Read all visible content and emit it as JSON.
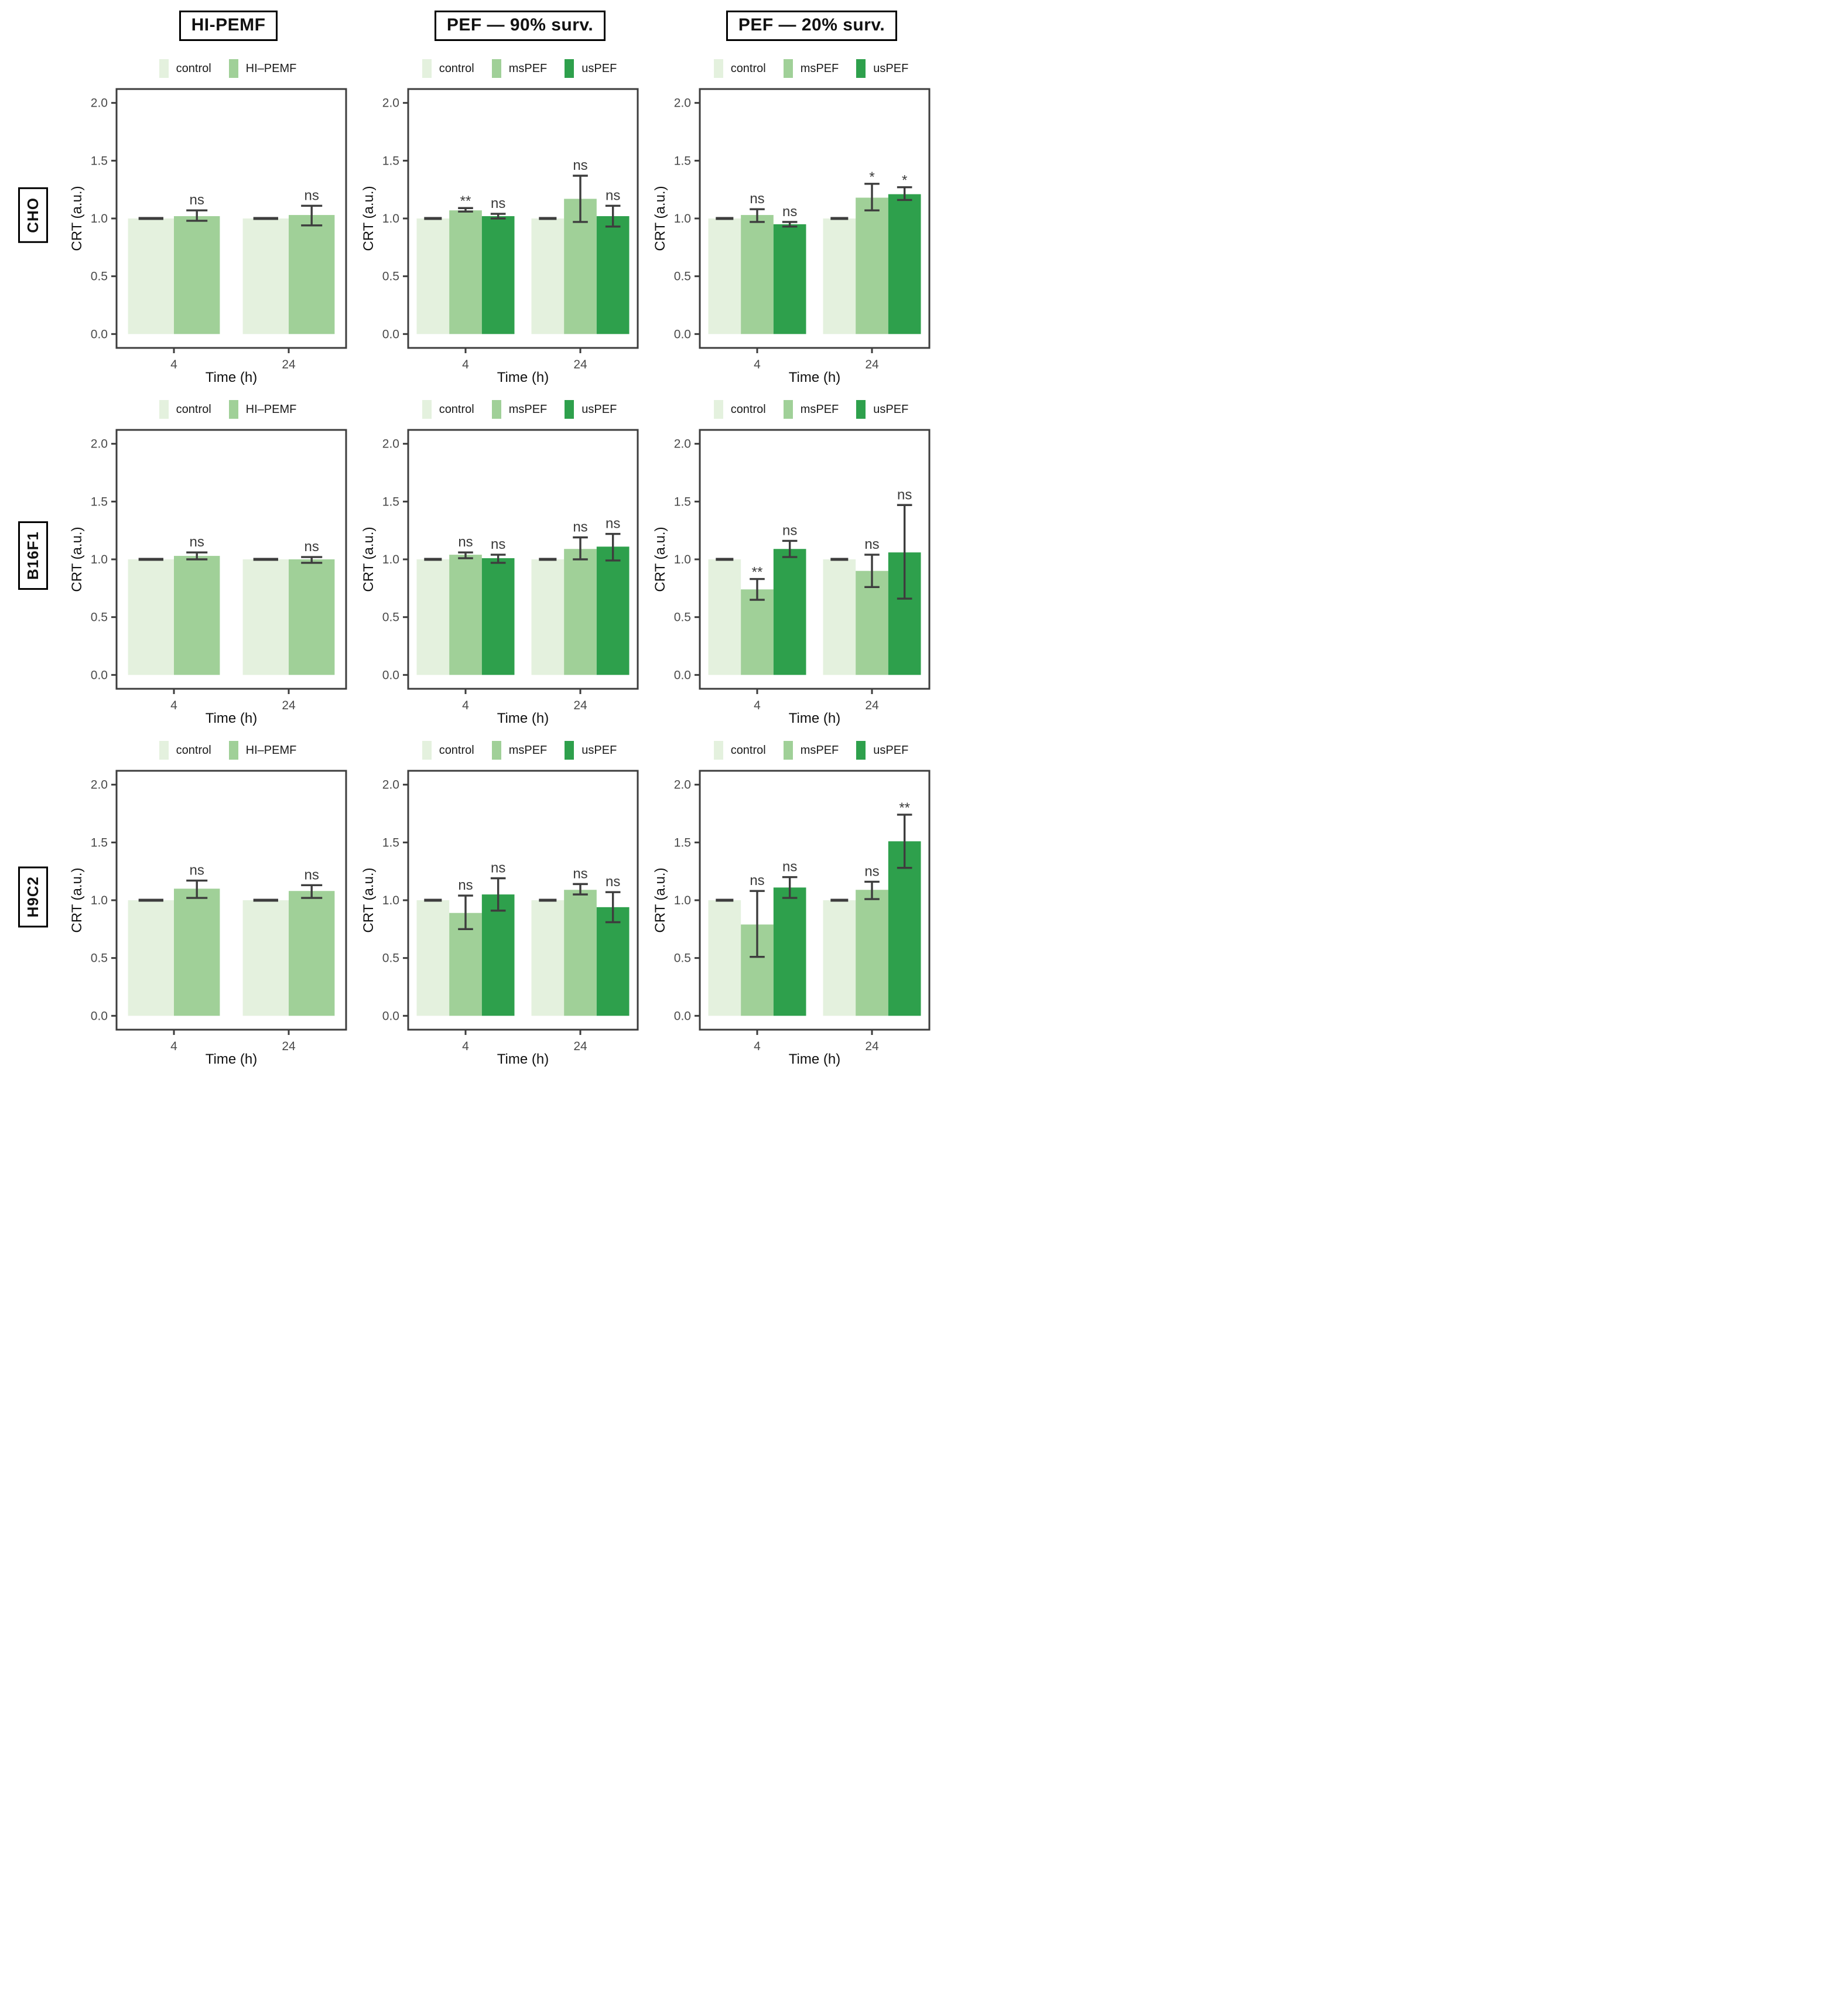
{
  "figure": {
    "column_titles": [
      "HI-PEMF",
      "PEF — 90% surv.",
      "PEF — 20% surv."
    ],
    "row_labels": [
      "CHO",
      "B16F1",
      "H9C2"
    ]
  },
  "axis": {
    "ylabel": "CRT (a.u.)",
    "xlabel": "Time (h)",
    "ytick_labels": [
      "0.0",
      "0.5",
      "1.0",
      "1.5",
      "2.0"
    ],
    "ytick_values": [
      0,
      0.5,
      1,
      1.5,
      2
    ],
    "ylim": [
      0,
      2
    ],
    "xtick_labels": [
      "4",
      "24"
    ]
  },
  "colors": {
    "control": "#e4f1de",
    "treatment_mid": "#a0d098",
    "treatment_dark": "#2ea04c",
    "errorbar": "#3d3d3d",
    "axis": "#3d3d3d",
    "tick_text": "#4a4a4a",
    "label_text": "#111111",
    "sig_text": "#3a3a3a"
  },
  "chart_data": [
    {
      "type": "bar",
      "row": "CHO",
      "treatment": "HI-PEMF",
      "legend": [
        {
          "label": "control",
          "key": "control"
        },
        {
          "label": "HI–PEMF",
          "key": "treatment_mid"
        }
      ],
      "groups": [
        {
          "x": "4",
          "bars": [
            {
              "series": "control",
              "key": "control",
              "v": 1.0,
              "lo": 1.0,
              "hi": 1.0,
              "sig": ""
            },
            {
              "series": "HI–PEMF",
              "key": "treatment_mid",
              "v": 1.02,
              "lo": 0.98,
              "hi": 1.07,
              "sig": "ns"
            }
          ]
        },
        {
          "x": "24",
          "bars": [
            {
              "series": "control",
              "key": "control",
              "v": 1.0,
              "lo": 1.0,
              "hi": 1.0,
              "sig": ""
            },
            {
              "series": "HI–PEMF",
              "key": "treatment_mid",
              "v": 1.03,
              "lo": 0.94,
              "hi": 1.11,
              "sig": "ns"
            }
          ]
        }
      ]
    },
    {
      "type": "bar",
      "row": "CHO",
      "treatment": "PEF — 90% surv.",
      "legend": [
        {
          "label": "control",
          "key": "control"
        },
        {
          "label": "msPEF",
          "key": "treatment_mid"
        },
        {
          "label": "usPEF",
          "key": "treatment_dark"
        }
      ],
      "groups": [
        {
          "x": "4",
          "bars": [
            {
              "series": "control",
              "key": "control",
              "v": 1.0,
              "lo": 1.0,
              "hi": 1.0,
              "sig": ""
            },
            {
              "series": "msPEF",
              "key": "treatment_mid",
              "v": 1.07,
              "lo": 1.06,
              "hi": 1.09,
              "sig": "**"
            },
            {
              "series": "usPEF",
              "key": "treatment_dark",
              "v": 1.02,
              "lo": 1.0,
              "hi": 1.04,
              "sig": "ns"
            }
          ]
        },
        {
          "x": "24",
          "bars": [
            {
              "series": "control",
              "key": "control",
              "v": 1.0,
              "lo": 1.0,
              "hi": 1.0,
              "sig": ""
            },
            {
              "series": "msPEF",
              "key": "treatment_mid",
              "v": 1.17,
              "lo": 0.97,
              "hi": 1.37,
              "sig": "ns"
            },
            {
              "series": "usPEF",
              "key": "treatment_dark",
              "v": 1.02,
              "lo": 0.93,
              "hi": 1.11,
              "sig": "ns"
            }
          ]
        }
      ]
    },
    {
      "type": "bar",
      "row": "CHO",
      "treatment": "PEF — 20% surv.",
      "legend": [
        {
          "label": "control",
          "key": "control"
        },
        {
          "label": "msPEF",
          "key": "treatment_mid"
        },
        {
          "label": "usPEF",
          "key": "treatment_dark"
        }
      ],
      "groups": [
        {
          "x": "4",
          "bars": [
            {
              "series": "control",
              "key": "control",
              "v": 1.0,
              "lo": 1.0,
              "hi": 1.0,
              "sig": ""
            },
            {
              "series": "msPEF",
              "key": "treatment_mid",
              "v": 1.03,
              "lo": 0.97,
              "hi": 1.08,
              "sig": "ns"
            },
            {
              "series": "usPEF",
              "key": "treatment_dark",
              "v": 0.95,
              "lo": 0.93,
              "hi": 0.97,
              "sig": "ns"
            }
          ]
        },
        {
          "x": "24",
          "bars": [
            {
              "series": "control",
              "key": "control",
              "v": 1.0,
              "lo": 1.0,
              "hi": 1.0,
              "sig": ""
            },
            {
              "series": "msPEF",
              "key": "treatment_mid",
              "v": 1.18,
              "lo": 1.07,
              "hi": 1.3,
              "sig": "*"
            },
            {
              "series": "usPEF",
              "key": "treatment_dark",
              "v": 1.21,
              "lo": 1.16,
              "hi": 1.27,
              "sig": "*"
            }
          ]
        }
      ]
    },
    {
      "type": "bar",
      "row": "B16F1",
      "treatment": "HI-PEMF",
      "legend": [
        {
          "label": "control",
          "key": "control"
        },
        {
          "label": "HI–PEMF",
          "key": "treatment_mid"
        }
      ],
      "groups": [
        {
          "x": "4",
          "bars": [
            {
              "series": "control",
              "key": "control",
              "v": 1.0,
              "lo": 1.0,
              "hi": 1.0,
              "sig": ""
            },
            {
              "series": "HI–PEMF",
              "key": "treatment_mid",
              "v": 1.03,
              "lo": 1.0,
              "hi": 1.06,
              "sig": "ns"
            }
          ]
        },
        {
          "x": "24",
          "bars": [
            {
              "series": "control",
              "key": "control",
              "v": 1.0,
              "lo": 1.0,
              "hi": 1.0,
              "sig": ""
            },
            {
              "series": "HI–PEMF",
              "key": "treatment_mid",
              "v": 1.0,
              "lo": 0.97,
              "hi": 1.02,
              "sig": "ns"
            }
          ]
        }
      ]
    },
    {
      "type": "bar",
      "row": "B16F1",
      "treatment": "PEF — 90% surv.",
      "legend": [
        {
          "label": "control",
          "key": "control"
        },
        {
          "label": "msPEF",
          "key": "treatment_mid"
        },
        {
          "label": "usPEF",
          "key": "treatment_dark"
        }
      ],
      "groups": [
        {
          "x": "4",
          "bars": [
            {
              "series": "control",
              "key": "control",
              "v": 1.0,
              "lo": 1.0,
              "hi": 1.0,
              "sig": ""
            },
            {
              "series": "msPEF",
              "key": "treatment_mid",
              "v": 1.04,
              "lo": 1.01,
              "hi": 1.06,
              "sig": "ns"
            },
            {
              "series": "usPEF",
              "key": "treatment_dark",
              "v": 1.01,
              "lo": 0.97,
              "hi": 1.04,
              "sig": "ns"
            }
          ]
        },
        {
          "x": "24",
          "bars": [
            {
              "series": "control",
              "key": "control",
              "v": 1.0,
              "lo": 1.0,
              "hi": 1.0,
              "sig": ""
            },
            {
              "series": "msPEF",
              "key": "treatment_mid",
              "v": 1.09,
              "lo": 1.0,
              "hi": 1.19,
              "sig": "ns"
            },
            {
              "series": "usPEF",
              "key": "treatment_dark",
              "v": 1.11,
              "lo": 0.99,
              "hi": 1.22,
              "sig": "ns"
            }
          ]
        }
      ]
    },
    {
      "type": "bar",
      "row": "B16F1",
      "treatment": "PEF — 20% surv.",
      "legend": [
        {
          "label": "control",
          "key": "control"
        },
        {
          "label": "msPEF",
          "key": "treatment_mid"
        },
        {
          "label": "usPEF",
          "key": "treatment_dark"
        }
      ],
      "groups": [
        {
          "x": "4",
          "bars": [
            {
              "series": "control",
              "key": "control",
              "v": 1.0,
              "lo": 1.0,
              "hi": 1.0,
              "sig": ""
            },
            {
              "series": "msPEF",
              "key": "treatment_mid",
              "v": 0.74,
              "lo": 0.65,
              "hi": 0.83,
              "sig": "**"
            },
            {
              "series": "usPEF",
              "key": "treatment_dark",
              "v": 1.09,
              "lo": 1.02,
              "hi": 1.16,
              "sig": "ns"
            }
          ]
        },
        {
          "x": "24",
          "bars": [
            {
              "series": "control",
              "key": "control",
              "v": 1.0,
              "lo": 1.0,
              "hi": 1.0,
              "sig": ""
            },
            {
              "series": "msPEF",
              "key": "treatment_mid",
              "v": 0.9,
              "lo": 0.76,
              "hi": 1.04,
              "sig": "ns"
            },
            {
              "series": "usPEF",
              "key": "treatment_dark",
              "v": 1.06,
              "lo": 0.66,
              "hi": 1.47,
              "sig": "ns"
            }
          ]
        }
      ]
    },
    {
      "type": "bar",
      "row": "H9C2",
      "treatment": "HI-PEMF",
      "legend": [
        {
          "label": "control",
          "key": "control"
        },
        {
          "label": "HI–PEMF",
          "key": "treatment_mid"
        }
      ],
      "groups": [
        {
          "x": "4",
          "bars": [
            {
              "series": "control",
              "key": "control",
              "v": 1.0,
              "lo": 1.0,
              "hi": 1.0,
              "sig": ""
            },
            {
              "series": "HI–PEMF",
              "key": "treatment_mid",
              "v": 1.1,
              "lo": 1.02,
              "hi": 1.17,
              "sig": "ns"
            }
          ]
        },
        {
          "x": "24",
          "bars": [
            {
              "series": "control",
              "key": "control",
              "v": 1.0,
              "lo": 1.0,
              "hi": 1.0,
              "sig": ""
            },
            {
              "series": "HI–PEMF",
              "key": "treatment_mid",
              "v": 1.08,
              "lo": 1.02,
              "hi": 1.13,
              "sig": "ns"
            }
          ]
        }
      ]
    },
    {
      "type": "bar",
      "row": "H9C2",
      "treatment": "PEF — 90% surv.",
      "legend": [
        {
          "label": "control",
          "key": "control"
        },
        {
          "label": "msPEF",
          "key": "treatment_mid"
        },
        {
          "label": "usPEF",
          "key": "treatment_dark"
        }
      ],
      "groups": [
        {
          "x": "4",
          "bars": [
            {
              "series": "control",
              "key": "control",
              "v": 1.0,
              "lo": 1.0,
              "hi": 1.0,
              "sig": ""
            },
            {
              "series": "msPEF",
              "key": "treatment_mid",
              "v": 0.89,
              "lo": 0.75,
              "hi": 1.04,
              "sig": "ns"
            },
            {
              "series": "usPEF",
              "key": "treatment_dark",
              "v": 1.05,
              "lo": 0.91,
              "hi": 1.19,
              "sig": "ns"
            }
          ]
        },
        {
          "x": "24",
          "bars": [
            {
              "series": "control",
              "key": "control",
              "v": 1.0,
              "lo": 1.0,
              "hi": 1.0,
              "sig": ""
            },
            {
              "series": "msPEF",
              "key": "treatment_mid",
              "v": 1.09,
              "lo": 1.05,
              "hi": 1.14,
              "sig": "ns"
            },
            {
              "series": "usPEF",
              "key": "treatment_dark",
              "v": 0.94,
              "lo": 0.81,
              "hi": 1.07,
              "sig": "ns"
            }
          ]
        }
      ]
    },
    {
      "type": "bar",
      "row": "H9C2",
      "treatment": "PEF — 20% surv.",
      "legend": [
        {
          "label": "control",
          "key": "control"
        },
        {
          "label": "msPEF",
          "key": "treatment_mid"
        },
        {
          "label": "usPEF",
          "key": "treatment_dark"
        }
      ],
      "groups": [
        {
          "x": "4",
          "bars": [
            {
              "series": "control",
              "key": "control",
              "v": 1.0,
              "lo": 1.0,
              "hi": 1.0,
              "sig": ""
            },
            {
              "series": "msPEF",
              "key": "treatment_mid",
              "v": 0.79,
              "lo": 0.51,
              "hi": 1.08,
              "sig": "ns"
            },
            {
              "series": "usPEF",
              "key": "treatment_dark",
              "v": 1.11,
              "lo": 1.02,
              "hi": 1.2,
              "sig": "ns"
            }
          ]
        },
        {
          "x": "24",
          "bars": [
            {
              "series": "control",
              "key": "control",
              "v": 1.0,
              "lo": 1.0,
              "hi": 1.0,
              "sig": ""
            },
            {
              "series": "msPEF",
              "key": "treatment_mid",
              "v": 1.09,
              "lo": 1.01,
              "hi": 1.16,
              "sig": "ns"
            },
            {
              "series": "usPEF",
              "key": "treatment_dark",
              "v": 1.51,
              "lo": 1.28,
              "hi": 1.74,
              "sig": "**"
            }
          ]
        }
      ]
    }
  ]
}
